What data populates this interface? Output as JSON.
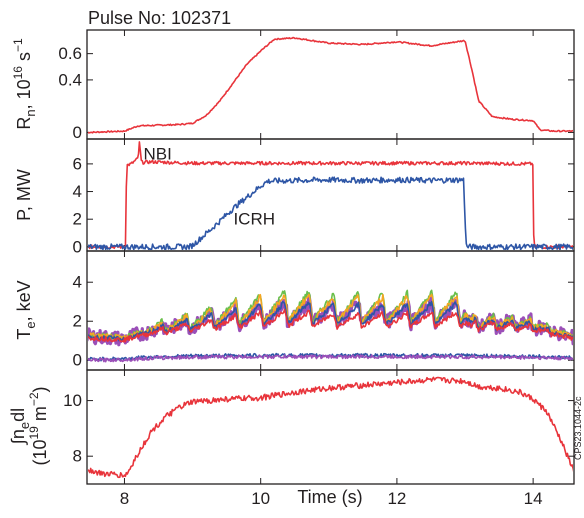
{
  "chart_data": {
    "type": "line",
    "title": "Pulse No: 102371",
    "xlabel": "Time (s)",
    "xlim": [
      7.45,
      14.6
    ],
    "xticks": [
      8,
      10,
      12,
      14
    ],
    "credit": "CPS23.1044-2c",
    "panels": [
      {
        "id": "rn",
        "ylabel_main": "R",
        "ylabel_sub": "n",
        "ylabel_units": ", 10",
        "ylabel_exp": "16",
        "ylabel_unit2": " s",
        "ylabel_exp2": "−1",
        "ylim": [
          -0.05,
          0.78
        ],
        "yticks": [
          0,
          0.4,
          0.6
        ],
        "yticklabels": [
          "0",
          "0.4",
          "0.6"
        ],
        "series": [
          {
            "color": "#e8343b",
            "x": [
              7.45,
              8.0,
              8.2,
              8.5,
              8.8,
              9.0,
              9.2,
              9.4,
              9.6,
              9.8,
              10.0,
              10.2,
              10.5,
              11.0,
              11.5,
              12.0,
              12.5,
              13.0,
              13.1,
              13.2,
              13.4,
              13.7,
              14.0,
              14.1,
              14.3,
              14.6
            ],
            "y": [
              0,
              0.01,
              0.05,
              0.055,
              0.06,
              0.07,
              0.13,
              0.24,
              0.38,
              0.52,
              0.62,
              0.71,
              0.72,
              0.68,
              0.67,
              0.69,
              0.66,
              0.7,
              0.48,
              0.24,
              0.12,
              0.1,
              0.09,
              0.02,
              0.01,
              0.01
            ],
            "noise": 0.012
          }
        ]
      },
      {
        "id": "power",
        "ylabel": "P, MW",
        "ylim": [
          -0.3,
          7.8
        ],
        "yticks": [
          0,
          2,
          4,
          6
        ],
        "yticklabels": [
          "0",
          "2",
          "4",
          "6"
        ],
        "annotations": [
          {
            "text": "NBI",
            "x": 8.28,
            "y": 6.3
          },
          {
            "text": "ICRH",
            "x": 9.6,
            "y": 1.6
          }
        ],
        "series": [
          {
            "name": "NBI",
            "color": "#e8343b",
            "x": [
              7.45,
              8.02,
              8.03,
              8.1,
              8.2,
              8.22,
              8.25,
              8.4,
              9.0,
              10.0,
              11.0,
              12.0,
              13.0,
              13.99,
              14.0,
              14.01,
              14.6
            ],
            "y": [
              0,
              0,
              5.9,
              6.0,
              6.4,
              7.5,
              6.1,
              6.15,
              6.05,
              6.05,
              6.05,
              6.05,
              6.05,
              6.0,
              6.0,
              0,
              0
            ],
            "noise": 0.03
          },
          {
            "name": "ICRH",
            "color": "#2e56a6",
            "x": [
              7.45,
              8.95,
              9.0,
              9.3,
              9.6,
              10.0,
              10.1,
              10.5,
              11.0,
              11.5,
              12.0,
              12.5,
              12.98,
              13.0,
              13.02,
              14.6
            ],
            "y": [
              0,
              0,
              0.1,
              1.4,
              2.8,
              4.4,
              4.75,
              4.8,
              4.85,
              4.8,
              4.85,
              4.8,
              4.85,
              2.0,
              0,
              0
            ],
            "noise": 0.05
          }
        ]
      },
      {
        "id": "te",
        "ylabel_main": "T",
        "ylabel_sub": "e",
        "ylabel_units": ", keV",
        "ylim": [
          -0.5,
          5.6
        ],
        "yticks": [
          0,
          2,
          4
        ],
        "yticklabels": [
          "0",
          "2",
          "4"
        ],
        "sawtooth": {
          "start": 8.6,
          "end": 13.1,
          "period": 0.36
        },
        "series": [
          {
            "color": "#9b4fb8",
            "x": [
              7.45,
              8.0,
              8.2,
              8.6,
              9.0,
              9.5,
              10.0,
              10.5,
              11.0,
              11.5,
              12.0,
              12.5,
              13.0,
              13.1,
              13.5,
              14.0,
              14.6
            ],
            "y": [
              1.25,
              1.1,
              1.35,
              1.7,
              1.9,
              2.2,
              2.4,
              2.5,
              2.4,
              2.4,
              2.4,
              2.45,
              2.45,
              1.9,
              1.9,
              1.8,
              1.15
            ],
            "amp": [
              0,
              0,
              0,
              0.4,
              0.6,
              0.9,
              1.1,
              1.2,
              1.0,
              1.0,
              1.05,
              1.05,
              1.05,
              0.6,
              0.5,
              0.4,
              0
            ],
            "noise": 0.12
          },
          {
            "color": "#6abf4b",
            "x": [
              7.45,
              8.0,
              8.2,
              8.6,
              9.0,
              9.5,
              10.0,
              10.5,
              11.0,
              11.5,
              12.0,
              12.5,
              13.0,
              13.1,
              13.5,
              14.0,
              14.6
            ],
            "y": [
              1.3,
              1.15,
              1.4,
              1.8,
              2.05,
              2.45,
              2.7,
              2.8,
              2.7,
              2.7,
              2.7,
              2.75,
              2.75,
              2.0,
              2.0,
              1.9,
              1.2
            ],
            "amp": [
              0,
              0,
              0,
              0.55,
              0.8,
              1.2,
              1.55,
              1.65,
              1.45,
              1.45,
              1.5,
              1.5,
              1.5,
              0.7,
              0.55,
              0.45,
              0
            ],
            "noise": 0.05
          },
          {
            "color": "#f5a623",
            "x": [
              7.45,
              8.0,
              8.2,
              8.6,
              9.0,
              9.5,
              10.0,
              10.5,
              11.0,
              11.5,
              12.0,
              12.5,
              13.0,
              13.1,
              13.5,
              14.0,
              14.6
            ],
            "y": [
              1.28,
              1.12,
              1.38,
              1.75,
              1.98,
              2.35,
              2.6,
              2.7,
              2.6,
              2.6,
              2.6,
              2.65,
              2.65,
              1.95,
              1.95,
              1.85,
              1.18
            ],
            "amp": [
              0,
              0,
              0,
              0.5,
              0.75,
              1.1,
              1.4,
              1.5,
              1.3,
              1.3,
              1.35,
              1.35,
              1.35,
              0.65,
              0.5,
              0.42,
              0
            ],
            "noise": 0.05
          },
          {
            "color": "#2e56a6",
            "x": [
              7.45,
              8.0,
              8.2,
              8.6,
              9.0,
              9.5,
              10.0,
              10.5,
              11.0,
              11.5,
              12.0,
              12.5,
              13.0,
              13.1,
              13.5,
              14.0,
              14.6
            ],
            "y": [
              1.2,
              1.08,
              1.3,
              1.65,
              1.85,
              2.15,
              2.35,
              2.45,
              2.35,
              2.35,
              2.35,
              2.4,
              2.4,
              1.85,
              1.85,
              1.75,
              1.12
            ],
            "amp": [
              0,
              0,
              0,
              0.4,
              0.6,
              0.9,
              1.15,
              1.25,
              1.05,
              1.05,
              1.1,
              1.1,
              1.1,
              0.55,
              0.45,
              0.38,
              0
            ],
            "noise": 0.04
          },
          {
            "color": "#e8343b",
            "x": [
              7.45,
              8.0,
              8.2,
              8.6,
              9.0,
              9.5,
              10.0,
              10.5,
              11.0,
              11.5,
              12.0,
              12.5,
              13.0,
              13.1,
              13.5,
              14.0,
              14.6
            ],
            "y": [
              1.15,
              1.05,
              1.25,
              1.55,
              1.7,
              1.95,
              2.1,
              2.15,
              2.05,
              2.05,
              2.05,
              2.1,
              2.1,
              1.75,
              1.75,
              1.65,
              1.1
            ],
            "amp": [
              0,
              0,
              0,
              0.3,
              0.4,
              0.6,
              0.75,
              0.8,
              0.7,
              0.7,
              0.72,
              0.72,
              0.72,
              0.4,
              0.35,
              0.3,
              0
            ],
            "noise": 0.04
          },
          {
            "color": "#2e56a6",
            "x": [
              7.45,
              8.0,
              8.5,
              9.0,
              10.0,
              11.0,
              12.0,
              13.0,
              13.5,
              14.0,
              14.6
            ],
            "y": [
              0.05,
              0.08,
              0.18,
              0.22,
              0.25,
              0.25,
              0.25,
              0.24,
              0.22,
              0.2,
              0.12
            ],
            "noise": 0.03
          },
          {
            "color": "#9b4fb8",
            "x": [
              7.45,
              8.0,
              8.5,
              9.0,
              10.0,
              11.0,
              12.0,
              13.0,
              13.5,
              14.0,
              14.6
            ],
            "y": [
              0.0,
              0.03,
              0.12,
              0.16,
              0.18,
              0.18,
              0.18,
              0.17,
              0.16,
              0.14,
              0.08
            ],
            "noise": 0.03
          }
        ]
      },
      {
        "id": "density",
        "ylabel_line1": "∫n",
        "ylabel_line1_sub": "e",
        "ylabel_line1_tail": "dl",
        "ylabel_line2": "(10",
        "ylabel_line2_exp": "19",
        "ylabel_line2_tail": " m",
        "ylabel_line2_exp2": "−2",
        "ylabel_line2_close": ")",
        "ylim": [
          7.0,
          11.1
        ],
        "yticks": [
          8,
          10
        ],
        "yticklabels": [
          "8",
          "10"
        ],
        "series": [
          {
            "color": "#e8343b",
            "x": [
              7.45,
              7.6,
              7.8,
              8.0,
              8.05,
              8.2,
              8.4,
              8.6,
              8.8,
              9.0,
              9.5,
              10.0,
              10.5,
              11.0,
              11.5,
              12.0,
              12.5,
              13.0,
              13.2,
              13.5,
              13.8,
              14.0,
              14.2,
              14.4,
              14.6
            ],
            "y": [
              7.55,
              7.4,
              7.35,
              7.3,
              7.4,
              8.1,
              8.9,
              9.4,
              9.75,
              9.95,
              10.05,
              10.1,
              10.3,
              10.45,
              10.55,
              10.65,
              10.75,
              10.7,
              10.5,
              10.45,
              10.3,
              10.05,
              9.6,
              8.6,
              7.45
            ],
            "noise": 0.05
          }
        ]
      }
    ]
  }
}
